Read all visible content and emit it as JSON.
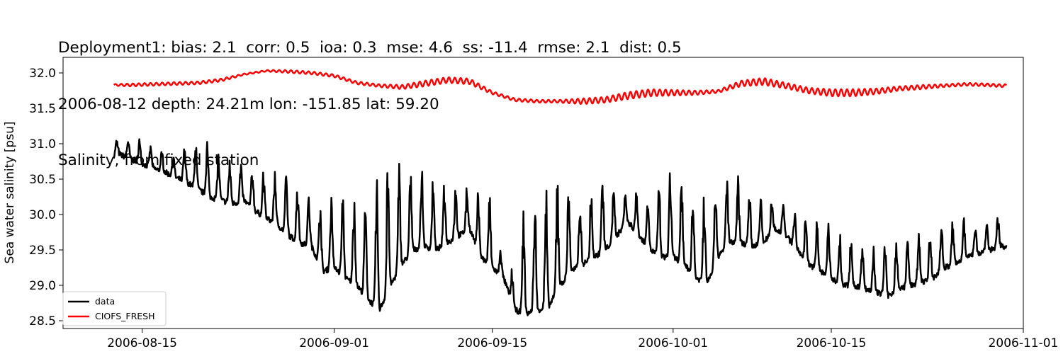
{
  "chart_data": {
    "type": "line",
    "title_lines": [
      "Deployment1: bias: 2.1  corr: 0.5  ioa: 0.3  mse: 4.6  ss: -11.4  rmse: 2.1  dist: 0.5",
      "2006-08-12 depth: 24.21m lon: -151.85 lat: 59.20",
      "Salinity, from fixed station"
    ],
    "ylabel": "Sea water salinity [psu]",
    "xlabel": "",
    "x_range": [
      "2006-08-08",
      "2006-11-01"
    ],
    "ylim": [
      28.39,
      32.22
    ],
    "x_ticks": [
      "2006-08-15",
      "2006-09-01",
      "2006-09-15",
      "2006-10-01",
      "2006-10-15",
      "2006-11-01"
    ],
    "y_ticks": [
      28.5,
      29.0,
      29.5,
      30.0,
      30.5,
      31.0,
      31.5,
      32.0
    ],
    "y_tick_labels": [
      "28.5",
      "29.0",
      "29.5",
      "30.0",
      "30.5",
      "31.0",
      "31.5",
      "32.0"
    ],
    "grid": false,
    "legend_position": "lower-left",
    "series": [
      {
        "name": "data",
        "color": "#000000",
        "date": [
          "2006-08-12",
          "2006-08-13",
          "2006-08-14",
          "2006-08-15",
          "2006-08-16",
          "2006-08-17",
          "2006-08-18",
          "2006-08-19",
          "2006-08-20",
          "2006-08-21",
          "2006-08-22",
          "2006-08-23",
          "2006-08-24",
          "2006-08-25",
          "2006-08-26",
          "2006-08-27",
          "2006-08-28",
          "2006-08-29",
          "2006-08-30",
          "2006-08-31",
          "2006-09-01",
          "2006-09-02",
          "2006-09-03",
          "2006-09-04",
          "2006-09-05",
          "2006-09-06",
          "2006-09-07",
          "2006-09-08",
          "2006-09-09",
          "2006-09-10",
          "2006-09-11",
          "2006-09-12",
          "2006-09-13",
          "2006-09-14",
          "2006-09-15",
          "2006-09-16",
          "2006-09-17",
          "2006-09-18",
          "2006-09-19",
          "2006-09-20",
          "2006-09-21",
          "2006-09-22",
          "2006-09-23",
          "2006-09-24",
          "2006-09-25",
          "2006-09-26",
          "2006-09-27",
          "2006-09-28",
          "2006-09-29",
          "2006-09-30",
          "2006-10-01",
          "2006-10-02",
          "2006-10-03",
          "2006-10-04",
          "2006-10-05",
          "2006-10-06",
          "2006-10-07",
          "2006-10-08",
          "2006-10-09",
          "2006-10-10",
          "2006-10-11",
          "2006-10-12",
          "2006-10-13",
          "2006-10-14",
          "2006-10-15",
          "2006-10-16",
          "2006-10-17",
          "2006-10-18",
          "2006-10-19",
          "2006-10-20",
          "2006-10-21",
          "2006-10-22",
          "2006-10-23",
          "2006-10-24",
          "2006-10-25",
          "2006-10-26",
          "2006-10-27",
          "2006-10-28",
          "2006-10-29",
          "2006-10-30"
        ],
        "base": [
          30.8,
          30.85,
          30.78,
          30.72,
          30.65,
          30.6,
          30.52,
          30.45,
          30.35,
          30.25,
          30.2,
          30.15,
          30.2,
          30.05,
          29.95,
          29.85,
          29.7,
          29.6,
          29.55,
          29.2,
          29.25,
          29.1,
          29.0,
          28.8,
          28.65,
          29.0,
          29.3,
          29.5,
          29.55,
          29.5,
          29.6,
          29.7,
          29.8,
          29.4,
          29.25,
          29.1,
          28.65,
          28.6,
          28.65,
          28.7,
          29.0,
          29.2,
          29.3,
          29.4,
          29.5,
          29.7,
          29.9,
          29.7,
          29.5,
          29.4,
          29.4,
          29.3,
          29.1,
          29.05,
          29.4,
          29.6,
          29.6,
          29.55,
          29.6,
          29.8,
          29.7,
          29.5,
          29.3,
          29.2,
          29.1,
          29.0,
          29.0,
          28.95,
          28.9,
          28.85,
          28.95,
          29.0,
          29.05,
          29.1,
          29.25,
          29.3,
          29.4,
          29.45,
          29.5,
          29.55
        ],
        "peak": [
          31.05,
          31.1,
          31.1,
          31.15,
          30.95,
          30.9,
          30.85,
          31.12,
          31.1,
          31.1,
          30.85,
          30.8,
          30.75,
          30.65,
          30.7,
          30.65,
          30.55,
          30.5,
          30.25,
          30.4,
          30.45,
          30.4,
          30.25,
          30.2,
          30.9,
          31.05,
          30.75,
          30.7,
          30.65,
          30.55,
          30.5,
          30.45,
          30.4,
          30.35,
          30.3,
          29.25,
          29.3,
          30.35,
          30.5,
          30.55,
          30.6,
          30.45,
          30.4,
          30.5,
          30.55,
          30.45,
          30.4,
          30.35,
          30.25,
          30.5,
          30.8,
          30.55,
          30.5,
          30.3,
          30.6,
          30.6,
          30.5,
          30.4,
          30.3,
          30.25,
          30.2,
          30.1,
          30.0,
          29.95,
          29.9,
          29.8,
          29.75,
          29.65,
          29.6,
          29.75,
          29.75,
          29.7,
          29.75,
          29.8,
          29.95,
          30.05,
          29.95,
          29.9,
          29.95,
          30.05
        ]
      },
      {
        "name": "CIOFS_FRESH",
        "color": "#ff0000",
        "date": [
          "2006-08-12",
          "2006-08-14",
          "2006-08-16",
          "2006-08-18",
          "2006-08-20",
          "2006-08-22",
          "2006-08-24",
          "2006-08-26",
          "2006-08-28",
          "2006-08-30",
          "2006-09-01",
          "2006-09-03",
          "2006-09-05",
          "2006-09-07",
          "2006-09-09",
          "2006-09-11",
          "2006-09-13",
          "2006-09-15",
          "2006-09-17",
          "2006-09-19",
          "2006-09-21",
          "2006-09-23",
          "2006-09-25",
          "2006-09-27",
          "2006-09-29",
          "2006-10-01",
          "2006-10-03",
          "2006-10-05",
          "2006-10-07",
          "2006-10-09",
          "2006-10-11",
          "2006-10-13",
          "2006-10-15",
          "2006-10-17",
          "2006-10-19",
          "2006-10-21",
          "2006-10-23",
          "2006-10-25",
          "2006-10-27",
          "2006-10-29",
          "2006-10-30"
        ],
        "values": [
          31.83,
          31.83,
          31.84,
          31.85,
          31.86,
          31.9,
          31.98,
          32.03,
          32.02,
          32.0,
          31.96,
          31.86,
          31.82,
          31.8,
          31.85,
          31.9,
          31.88,
          31.72,
          31.62,
          31.6,
          31.6,
          31.6,
          31.62,
          31.68,
          31.72,
          31.72,
          31.72,
          31.74,
          31.85,
          31.88,
          31.82,
          31.75,
          31.72,
          31.72,
          31.74,
          31.78,
          31.8,
          31.82,
          31.84,
          31.83,
          31.82
        ],
        "wiggle_amplitude": [
          0.01,
          0.02,
          0.02,
          0.02,
          0.02,
          0.02,
          0.01,
          0.01,
          0.02,
          0.02,
          0.02,
          0.02,
          0.02,
          0.03,
          0.04,
          0.04,
          0.04,
          0.02,
          0.02,
          0.02,
          0.02,
          0.04,
          0.04,
          0.05,
          0.05,
          0.04,
          0.03,
          0.02,
          0.04,
          0.05,
          0.04,
          0.04,
          0.05,
          0.05,
          0.04,
          0.03,
          0.03,
          0.02,
          0.02,
          0.02,
          0.02
        ]
      }
    ]
  }
}
